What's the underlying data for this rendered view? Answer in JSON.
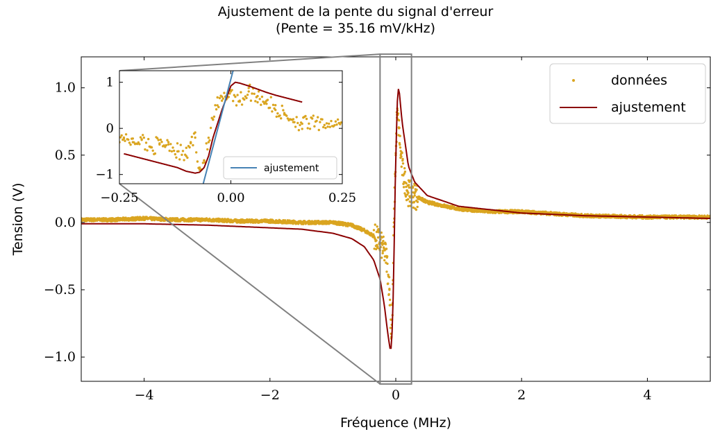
{
  "chart_data": [
    {
      "type": "scatter",
      "title_line1": "Ajustement de la pente du signal d'erreur",
      "title_line2": "(Pente = 35.16 mV/kHz)",
      "xlabel": "Fréquence (MHz)",
      "ylabel": "Tension (V)",
      "xlim": [
        -5,
        5
      ],
      "ylim": [
        -1.18,
        1.23
      ],
      "xticks": [
        -4,
        -2,
        0,
        2,
        4
      ],
      "yticks": [
        -1.0,
        -0.5,
        0.0,
        0.5,
        1.0
      ],
      "xtick_labels": [
        "−4",
        "−2",
        "0",
        "2",
        "4"
      ],
      "ytick_labels": [
        "−1.0",
        "−0.5",
        "0.0",
        "0.5",
        "1.0"
      ],
      "grid": false,
      "legend_position": "upper right",
      "series": [
        {
          "name": "données",
          "kind": "points",
          "color": "#DAA520",
          "x": [
            -5.0,
            -4.5,
            -4.0,
            -3.5,
            -3.0,
            -2.5,
            -2.0,
            -1.5,
            -1.0,
            -0.7,
            -0.5,
            -0.35,
            -0.25,
            -0.15,
            -0.1,
            -0.07,
            -0.05,
            -0.03,
            0.0,
            0.02,
            0.05,
            0.08,
            0.12,
            0.2,
            0.3,
            0.5,
            0.8,
            1.0,
            1.5,
            2.0,
            3.0,
            4.0,
            5.0
          ],
          "y": [
            0.02,
            0.02,
            0.03,
            0.02,
            0.02,
            0.01,
            0.01,
            0.0,
            0.0,
            -0.02,
            -0.06,
            -0.1,
            -0.15,
            -0.25,
            -0.5,
            -0.85,
            -0.6,
            0.0,
            0.5,
            0.8,
            0.7,
            0.5,
            0.35,
            0.22,
            0.2,
            0.15,
            0.12,
            0.1,
            0.08,
            0.08,
            0.05,
            0.04,
            0.04
          ]
        },
        {
          "name": "ajustement",
          "kind": "line",
          "color": "#8B0000",
          "x": [
            -5.0,
            -4.0,
            -3.0,
            -2.0,
            -1.5,
            -1.0,
            -0.7,
            -0.5,
            -0.35,
            -0.25,
            -0.18,
            -0.12,
            -0.08,
            -0.05,
            -0.03,
            0.0,
            0.03,
            0.05,
            0.1,
            0.2,
            0.3,
            0.5,
            1.0,
            2.0,
            3.0,
            4.0,
            5.0
          ],
          "y": [
            -0.01,
            -0.01,
            -0.02,
            -0.04,
            -0.05,
            -0.08,
            -0.12,
            -0.18,
            -0.28,
            -0.42,
            -0.62,
            -0.85,
            -0.97,
            -0.75,
            -0.3,
            0.5,
            0.98,
            1.0,
            0.75,
            0.42,
            0.3,
            0.2,
            0.12,
            0.07,
            0.05,
            0.04,
            0.03
          ]
        }
      ]
    },
    {
      "type": "scatter",
      "role": "inset",
      "xlim": [
        -0.25,
        0.25
      ],
      "ylim": [
        -1.2,
        1.25
      ],
      "xticks": [
        -0.25,
        0.0,
        0.25
      ],
      "yticks": [
        -1,
        0,
        1
      ],
      "xtick_labels": [
        "−0.25",
        "0.00",
        "0.25"
      ],
      "ytick_labels": [
        "−1",
        "0",
        "1"
      ],
      "legend_position": "lower right",
      "series": [
        {
          "name": "",
          "kind": "points",
          "color": "#DAA520",
          "x": [
            -0.24,
            -0.22,
            -0.2,
            -0.18,
            -0.16,
            -0.14,
            -0.12,
            -0.1,
            -0.09,
            -0.08,
            -0.07,
            -0.06,
            -0.05,
            -0.04,
            -0.03,
            -0.02,
            -0.01,
            0.0,
            0.02,
            0.04,
            0.06,
            0.08,
            0.1,
            0.12,
            0.14,
            0.16
          ],
          "y": [
            -0.2,
            -0.3,
            -0.25,
            -0.4,
            -0.35,
            -0.3,
            -0.5,
            -0.6,
            -0.3,
            -0.2,
            -0.9,
            -0.7,
            -0.3,
            0.2,
            0.5,
            0.6,
            0.7,
            0.8,
            0.6,
            0.8,
            0.7,
            0.6,
            0.4,
            0.3,
            0.2,
            0.1
          ]
        },
        {
          "name": "",
          "kind": "line",
          "color": "#8B0000",
          "x": [
            -0.24,
            -0.2,
            -0.16,
            -0.12,
            -0.1,
            -0.08,
            -0.07,
            -0.06,
            -0.05,
            -0.04,
            -0.02,
            0.0,
            0.01,
            0.02,
            0.04,
            0.06,
            0.08,
            0.1,
            0.12,
            0.14,
            0.16
          ],
          "y": [
            -0.55,
            -0.65,
            -0.75,
            -0.85,
            -0.93,
            -0.97,
            -0.95,
            -0.85,
            -0.6,
            -0.2,
            0.4,
            0.92,
            1.0,
            0.98,
            0.92,
            0.85,
            0.78,
            0.72,
            0.67,
            0.62,
            0.57
          ]
        },
        {
          "name": "ajustement",
          "kind": "line",
          "color": "#4682B4",
          "x": [
            -0.062,
            0.005
          ],
          "y": [
            -1.2,
            1.25
          ]
        }
      ]
    }
  ]
}
